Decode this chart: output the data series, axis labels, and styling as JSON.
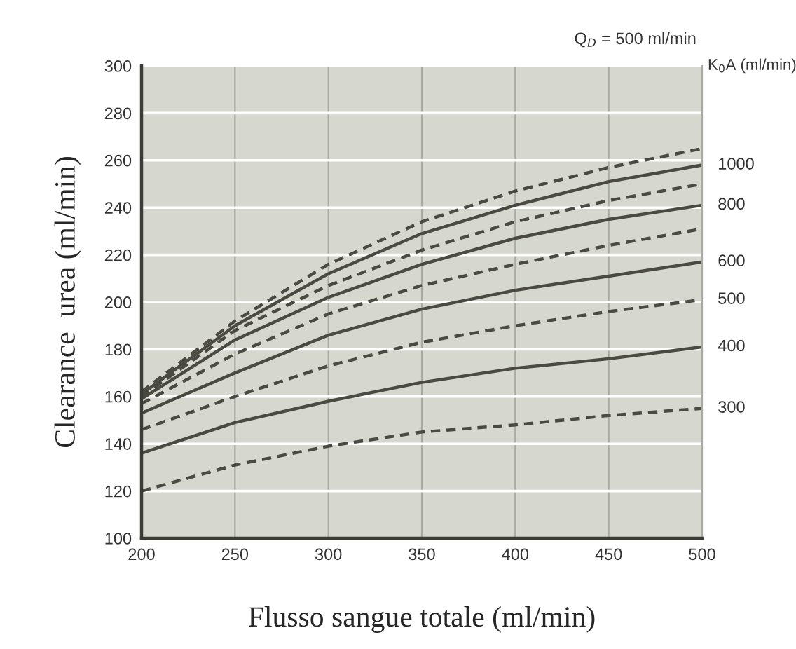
{
  "chart_data": {
    "type": "line",
    "xlabel": "Flusso sangue totale (ml/min)",
    "ylabel": "Clearance  urea (ml/min)",
    "annotations": [
      "Q$_{D}$ = 500 ml/min",
      "K$_{0}$A (ml/min)"
    ],
    "x": [
      200,
      250,
      300,
      350,
      400,
      450,
      500
    ],
    "xlim": [
      200,
      500
    ],
    "xticks": [
      200,
      250,
      300,
      350,
      400,
      450,
      500
    ],
    "ylim": [
      100,
      300
    ],
    "yticks": [
      100,
      120,
      140,
      160,
      180,
      200,
      220,
      240,
      260,
      280,
      300
    ],
    "grid": true,
    "legend": false,
    "marker": "none",
    "series": [
      {
        "color": "#4a4a42",
        "line_style": "dashed",
        "values": [
          162,
          192,
          216,
          234,
          247,
          257,
          265
        ]
      },
      {
        "name": "1000",
        "color": "#4a4a42",
        "line_style": "solid",
        "values": [
          161,
          190,
          212,
          229,
          241,
          251,
          258
        ]
      },
      {
        "color": "#4a4a42",
        "line_style": "dashed",
        "values": [
          160,
          188,
          207,
          222,
          234,
          243,
          250
        ]
      },
      {
        "name": "800",
        "color": "#4a4a42",
        "line_style": "solid",
        "values": [
          159,
          184,
          202,
          216,
          227,
          235,
          241
        ]
      },
      {
        "color": "#4a4a42",
        "line_style": "dashed",
        "values": [
          157,
          178,
          195,
          207,
          216,
          224,
          231
        ]
      },
      {
        "name": "600",
        "color": "#4a4a42",
        "line_style": "solid",
        "values": [
          153,
          170,
          186,
          197,
          205,
          211,
          217
        ]
      },
      {
        "name": "500",
        "color": "#4a4a42",
        "line_style": "dashed",
        "values": [
          146,
          160,
          173,
          183,
          190,
          196,
          201
        ]
      },
      {
        "name": "400",
        "color": "#4a4a42",
        "line_style": "solid",
        "values": [
          136,
          149,
          158,
          166,
          172,
          176,
          181
        ]
      },
      {
        "name": "300",
        "color": "#4a4a42",
        "line_style": "dashed",
        "values": [
          120,
          131,
          139,
          145,
          148,
          152,
          155
        ]
      }
    ]
  }
}
